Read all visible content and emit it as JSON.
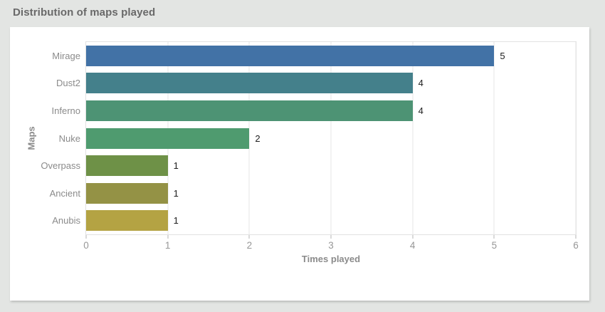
{
  "header": {
    "title": "Distribution of maps played"
  },
  "chart_data": {
    "type": "bar",
    "orientation": "horizontal",
    "title": "Distribution of maps played",
    "categories": [
      "Mirage",
      "Dust2",
      "Inferno",
      "Nuke",
      "Overpass",
      "Ancient",
      "Anubis"
    ],
    "values": [
      5,
      4,
      4,
      2,
      1,
      1,
      1
    ],
    "value_labels": [
      "5",
      "4",
      "4",
      "2",
      "1",
      "1",
      "1"
    ],
    "bar_colors": [
      "#4272a6",
      "#44808b",
      "#4d9374",
      "#4f9b6f",
      "#6e9147",
      "#949245",
      "#b4a343"
    ],
    "xlabel": "Times played",
    "ylabel": "Maps",
    "xlim": [
      0,
      6
    ],
    "x_ticks": [
      0,
      1,
      2,
      3,
      4,
      5,
      6
    ],
    "grid": "vertical",
    "legend": "none"
  },
  "colors": {
    "page_bg": "#e3e5e3",
    "card_bg": "#ffffff",
    "gridline": "#e6e6e6",
    "axis_text": "#8b8b8b",
    "title_text": "#696969",
    "value_text": "#1c1c1c"
  }
}
